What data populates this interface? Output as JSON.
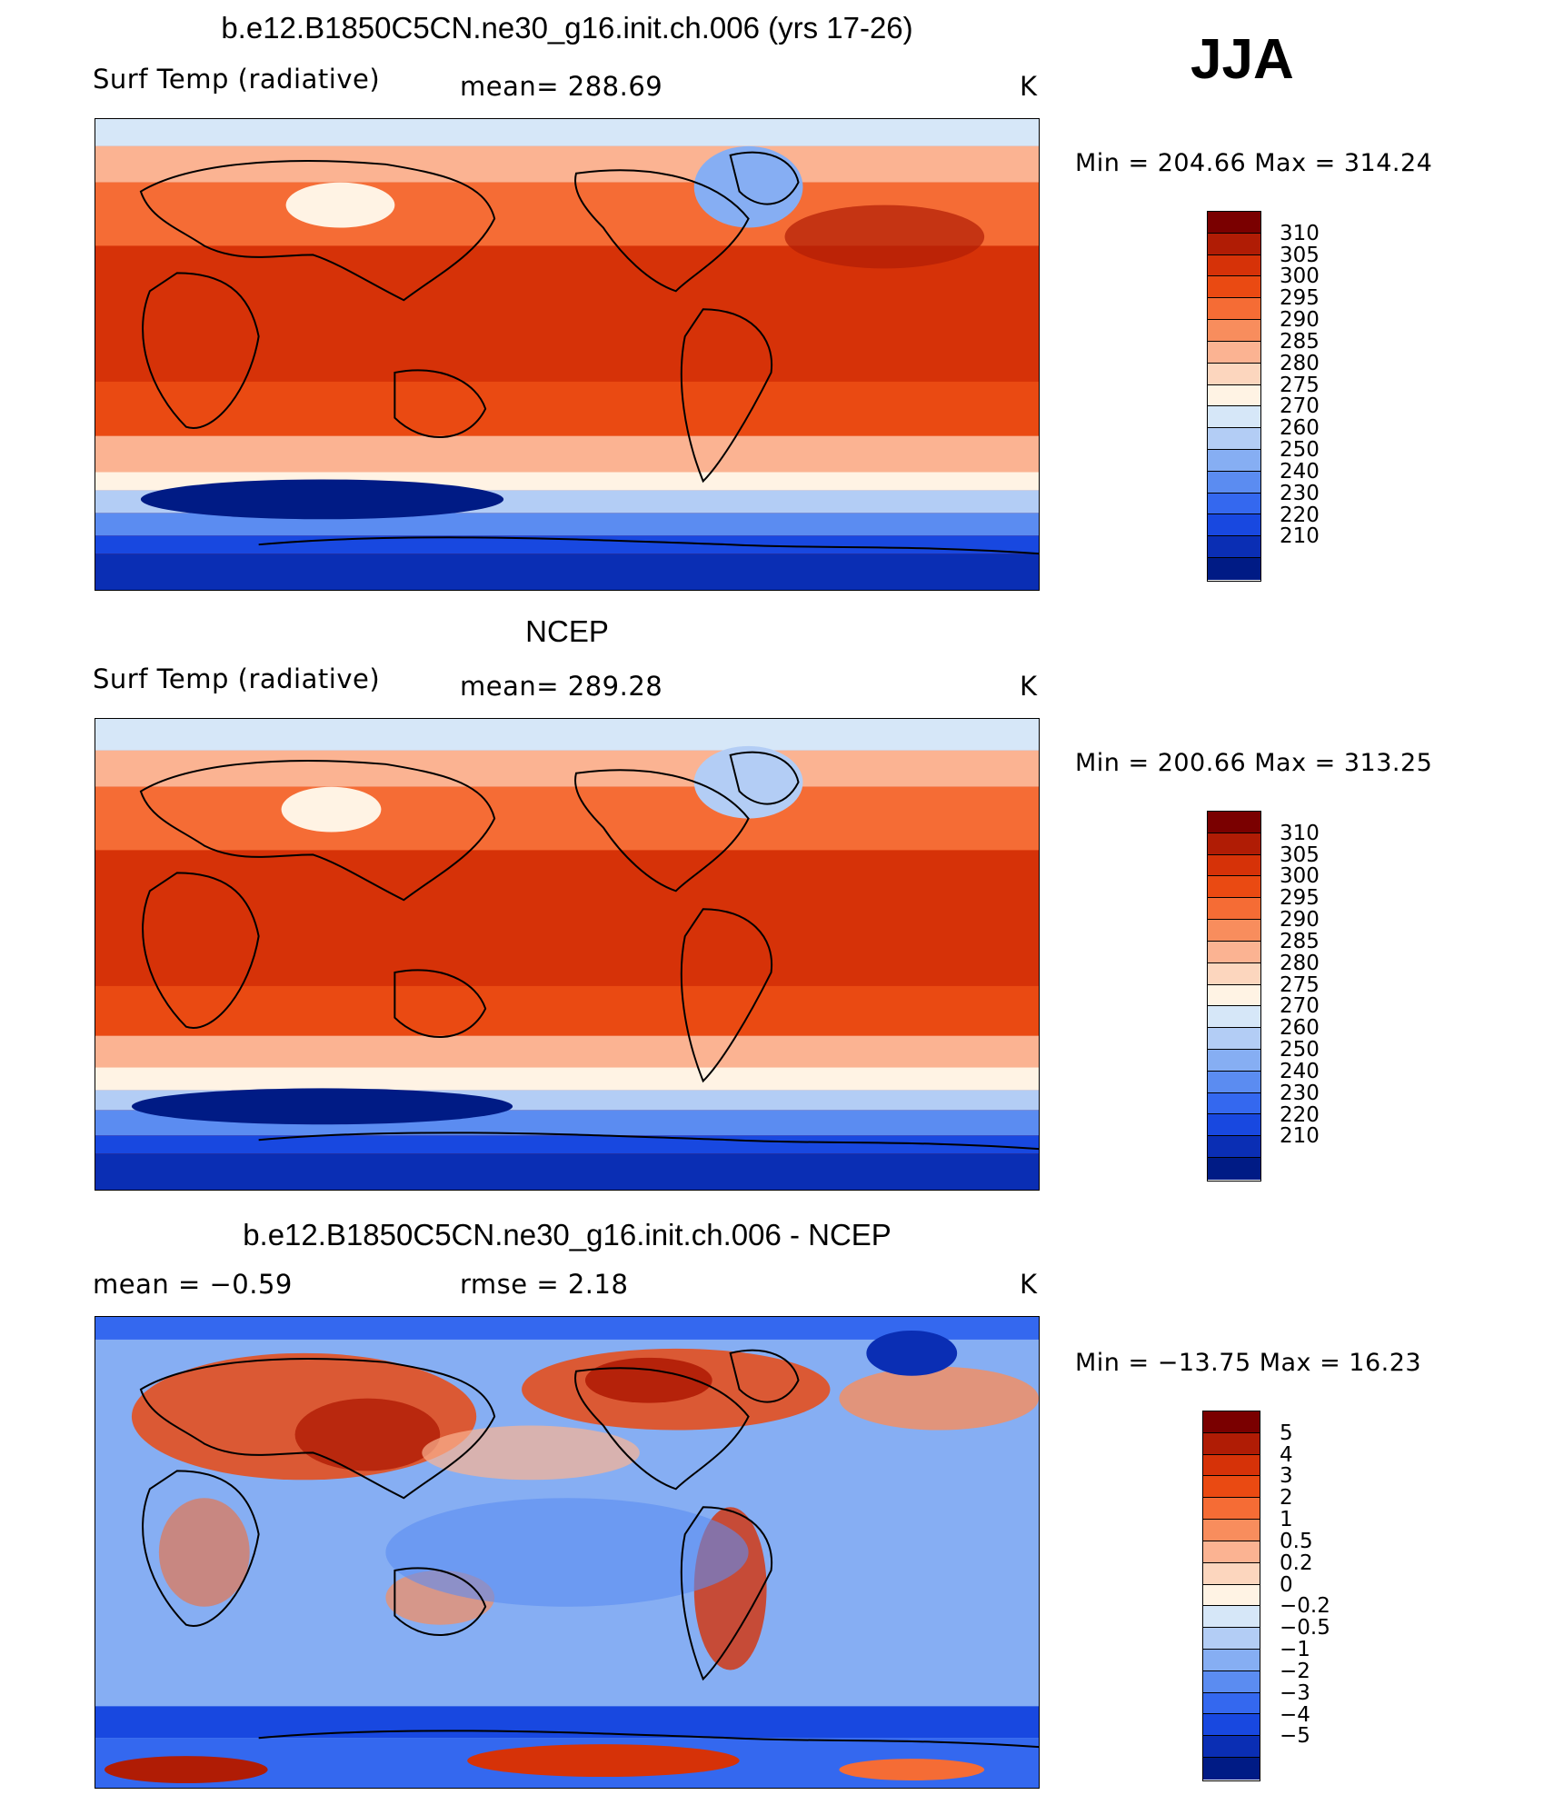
{
  "season": "JJA",
  "panels": [
    {
      "id": "model",
      "title": "b.e12.B1850C5CN.ne30_g16.init.ch.006 (yrs 17-26)",
      "left_label": "Surf Temp (radiative)",
      "center_label": "mean=  288.69",
      "units": "K",
      "minmax": "Min  =  204.66  Max  =  314.24",
      "scale": "abs"
    },
    {
      "id": "obs",
      "title": "NCEP",
      "left_label": "Surf Temp (radiative)",
      "center_label": "mean=  289.28",
      "units": "K",
      "minmax": "Min  =  200.66  Max  =  313.25",
      "scale": "abs"
    },
    {
      "id": "diff",
      "title": "b.e12.B1850C5CN.ne30_g16.init.ch.006 - NCEP",
      "left_label": "mean =    −0.59",
      "center_label": "rmse =     2.18",
      "units": "K",
      "minmax": "Min  =  −13.75  Max  =    16.23",
      "scale": "diff"
    }
  ],
  "colorbars": {
    "abs": {
      "ticks": [
        "310",
        "305",
        "300",
        "295",
        "290",
        "285",
        "280",
        "275",
        "270",
        "260",
        "250",
        "240",
        "230",
        "220",
        "210"
      ],
      "colors": [
        "#7a0000",
        "#b01c05",
        "#d63208",
        "#ea4a12",
        "#f56c35",
        "#f88d5d",
        "#fbb392",
        "#fcd6be",
        "#fff3e4",
        "#d6e7f8",
        "#b3cdf5",
        "#86aef3",
        "#5b8cf1",
        "#3468ef",
        "#1848e0",
        "#0a2eb4",
        "#001b85"
      ]
    },
    "diff": {
      "ticks": [
        "5",
        "4",
        "3",
        "2",
        "1",
        "0.5",
        "0.2",
        "0",
        "−0.2",
        "−0.5",
        "−1",
        "−2",
        "−3",
        "−4",
        "−5"
      ],
      "colors": [
        "#7a0000",
        "#b01c05",
        "#d63208",
        "#ea4a12",
        "#f56c35",
        "#f88d5d",
        "#fbb392",
        "#fcd6be",
        "#fff3e4",
        "#d6e7f8",
        "#b3cdf5",
        "#86aef3",
        "#5b8cf1",
        "#3468ef",
        "#1848e0",
        "#0a2eb4",
        "#001b85"
      ]
    }
  }
}
